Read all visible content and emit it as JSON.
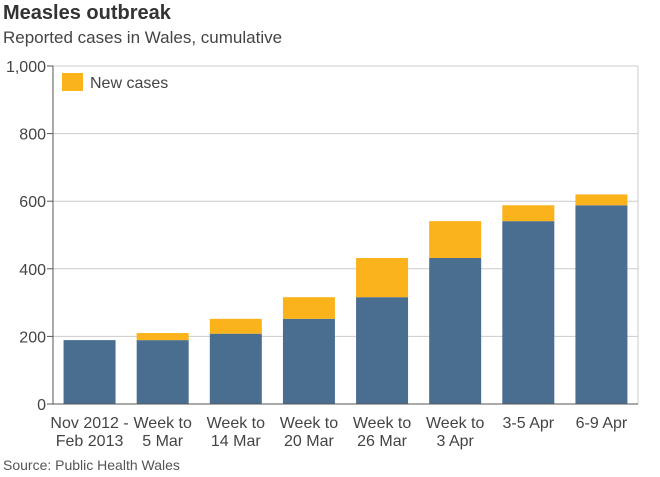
{
  "header": {
    "title": "Measles outbreak",
    "subtitle": "Reported cases in Wales, cumulative"
  },
  "source": "Source: Public Health Wales",
  "colors": {
    "base": "#4a6e8f",
    "new_cases": "#fab31b",
    "grid": "#cccccc",
    "axis": "#555555"
  },
  "chart_data": {
    "type": "bar",
    "stacked": true,
    "title": "Measles outbreak",
    "subtitle": "Reported cases in Wales, cumulative",
    "categories": [
      [
        "Nov 2012 -",
        "Feb 2013"
      ],
      [
        "Week to",
        "5 Mar"
      ],
      [
        "Week to",
        "14 Mar"
      ],
      [
        "Week to",
        "20 Mar"
      ],
      [
        "Week to",
        "26 Mar"
      ],
      [
        "Week to",
        "3 Apr"
      ],
      [
        "3-5 Apr"
      ],
      [
        "6-9 Apr"
      ]
    ],
    "series": [
      {
        "values": [
          189,
          189,
          208,
          252,
          316,
          432,
          541,
          588
        ]
      },
      {
        "name": "New cases",
        "values": [
          0,
          21,
          44,
          64,
          116,
          109,
          47,
          32
        ]
      }
    ],
    "totals": [
      189,
      210,
      252,
      316,
      432,
      541,
      588,
      620
    ],
    "ylim": [
      0,
      1000
    ],
    "yticks": [
      0,
      200,
      400,
      600,
      800,
      1000
    ],
    "ytick_labels": [
      "0",
      "200",
      "400",
      "600",
      "800",
      "1,000"
    ],
    "grid": true,
    "legend": {
      "placement": "top-left",
      "entries": [
        "New cases"
      ]
    }
  }
}
